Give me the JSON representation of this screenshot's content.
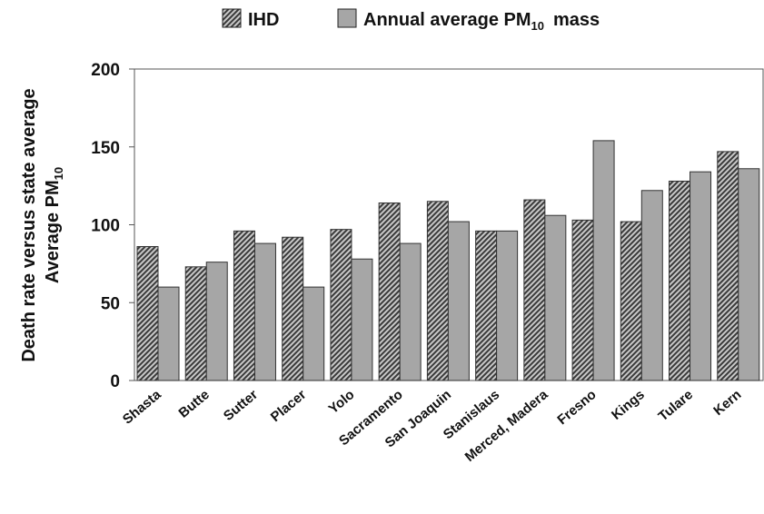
{
  "chart_data": {
    "type": "bar",
    "categories": [
      "Shasta",
      "Butte",
      "Sutter",
      "Placer",
      "Yolo",
      "Sacramento",
      "San Joaquin",
      "Stanislaus",
      "Merced, Madera",
      "Fresno",
      "Kings",
      "Tulare",
      "Kern"
    ],
    "series": [
      {
        "name": "IHD",
        "values": [
          86,
          73,
          96,
          92,
          97,
          114,
          115,
          96,
          116,
          103,
          102,
          128,
          147
        ]
      },
      {
        "name": "Annual average PM10 mass",
        "values": [
          60,
          76,
          88,
          60,
          78,
          88,
          102,
          96,
          106,
          154,
          122,
          134,
          136
        ]
      }
    ],
    "legend": {
      "placement": "top",
      "ihd_label": "IHD",
      "pm_label_main": "Annual average PM",
      "pm_label_sub": "10",
      "pm_label_tail": "mass"
    },
    "ylabel_line1": "Death rate versus state average",
    "ylabel_line2_main": "Average PM",
    "ylabel_line2_sub": "10",
    "yticks": [
      0,
      50,
      100,
      150,
      200
    ],
    "ylim": [
      0,
      200
    ],
    "grid": false,
    "colors": {
      "ihd": "#555555",
      "pm": "#a6a6a6"
    }
  }
}
